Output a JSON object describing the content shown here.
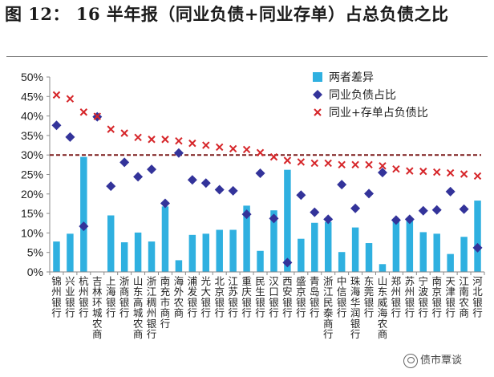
{
  "header": {
    "title": "图 12：  16 半年报（同业负债+同业存单）占总负债之比"
  },
  "watermark": {
    "text": "债市覃谈",
    "icon": "wechat-icon"
  },
  "colors": {
    "bar": "#2fb0e0",
    "diamond": "#33339a",
    "cross": "#d6262a",
    "ref_line": "#7b1a1a",
    "axis": "#8a8a8a",
    "text": "#333333"
  },
  "chart_data": {
    "type": "bar",
    "title": "16 半年报（同业负债+同业存单）占总负债之比",
    "categories": [
      "锦州银行",
      "兴业银行",
      "杭州银行",
      "吉林环城农商",
      "上海银行",
      "浙商银行",
      "山东高城农商",
      "浙江稠州银行",
      "南充市商行",
      "海外农商",
      "浦发银行",
      "光大银行",
      "北京银行",
      "江苏银行",
      "重庆银行",
      "民生银行",
      "汉口银行",
      "西安银行",
      "盛京银行",
      "青岛银行",
      "浙江民泰商行",
      "中信银行",
      "珠海华润银行",
      "东莞银行",
      "山东威海农商",
      "郑州银行",
      "苏州银行",
      "宁波银行",
      "南京银行",
      "天津银行",
      "江南农商",
      "河北银行"
    ],
    "series": [
      {
        "name": "两者差异",
        "kind": "bar",
        "values": [
          7.8,
          9.8,
          29.5,
          0,
          14.5,
          7.6,
          10.1,
          7.8,
          16.8,
          3.0,
          9.5,
          9.8,
          10.8,
          10.8,
          17.0,
          5.4,
          15.8,
          26.2,
          8.5,
          12.6,
          12.8,
          5.1,
          11.4,
          7.4,
          2.0,
          12.9,
          13.4,
          10.2,
          9.8,
          4.6,
          9.0,
          18.3
        ]
      },
      {
        "name": "同业负债占比",
        "kind": "diamond",
        "values": [
          37.6,
          34.6,
          11.7,
          39.8,
          22.0,
          28.1,
          24.4,
          26.3,
          17.6,
          30.5,
          23.6,
          22.8,
          21.1,
          20.8,
          14.8,
          25.3,
          13.7,
          2.4,
          19.7,
          15.3,
          13.5,
          22.4,
          16.3,
          20.1,
          25.5,
          13.3,
          13.5,
          15.7,
          15.9,
          20.6,
          16.1,
          6.2
        ]
      },
      {
        "name": "同业+存单占负债比",
        "kind": "cross",
        "values": [
          45.4,
          44.4,
          41.0,
          39.9,
          36.6,
          35.6,
          34.5,
          34.0,
          34.0,
          33.6,
          33.0,
          32.5,
          32.0,
          31.6,
          31.4,
          30.6,
          29.5,
          28.6,
          28.2,
          27.9,
          27.9,
          27.5,
          27.5,
          27.5,
          27.2,
          26.4,
          25.9,
          25.8,
          25.6,
          25.4,
          25.1,
          24.6
        ]
      }
    ],
    "reference_line": 30,
    "ylim": [
      0,
      50
    ],
    "yticks": [
      "0%",
      "5%",
      "10%",
      "15%",
      "20%",
      "25%",
      "30%",
      "35%",
      "40%",
      "45%",
      "50%"
    ],
    "legend_position": "top-right",
    "xlabel": "",
    "ylabel": ""
  }
}
